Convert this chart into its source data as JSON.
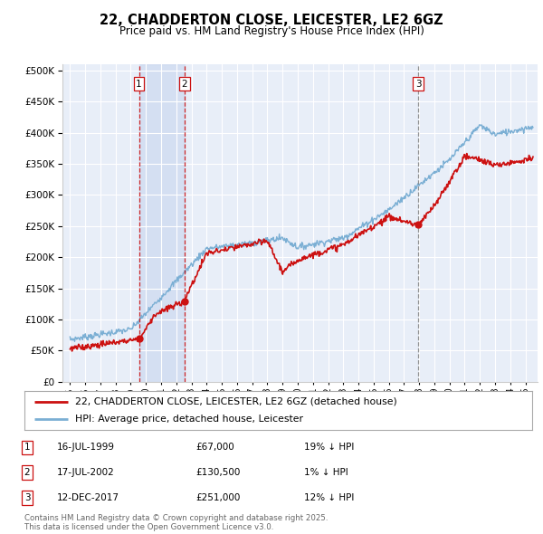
{
  "title": "22, CHADDERTON CLOSE, LEICESTER, LE2 6GZ",
  "subtitle": "Price paid vs. HM Land Registry's House Price Index (HPI)",
  "background_color": "#ffffff",
  "plot_bg_color": "#e8eef8",
  "grid_color": "#ffffff",
  "legend_label_red": "22, CHADDERTON CLOSE, LEICESTER, LE2 6GZ (detached house)",
  "legend_label_blue": "HPI: Average price, detached house, Leicester",
  "transactions": [
    {
      "num": 1,
      "date": "16-JUL-1999",
      "price": "£67,000",
      "hpi_note": "19% ↓ HPI",
      "year": 1999.54,
      "line_style": "dashed_red"
    },
    {
      "num": 2,
      "date": "17-JUL-2002",
      "price": "£130,500",
      "hpi_note": "1% ↓ HPI",
      "year": 2002.54,
      "line_style": "dashed_red"
    },
    {
      "num": 3,
      "date": "12-DEC-2017",
      "price": "£251,000",
      "hpi_note": "12% ↓ HPI",
      "year": 2017.95,
      "line_style": "dashed_gray"
    }
  ],
  "footnote": "Contains HM Land Registry data © Crown copyright and database right 2025.\nThis data is licensed under the Open Government Licence v3.0.",
  "yticks": [
    0,
    50000,
    100000,
    150000,
    200000,
    250000,
    300000,
    350000,
    400000,
    450000,
    500000
  ],
  "ylim": [
    0,
    510000
  ],
  "xlim_start": 1994.5,
  "xlim_end": 2025.8,
  "shade_between_t1_t2": true
}
